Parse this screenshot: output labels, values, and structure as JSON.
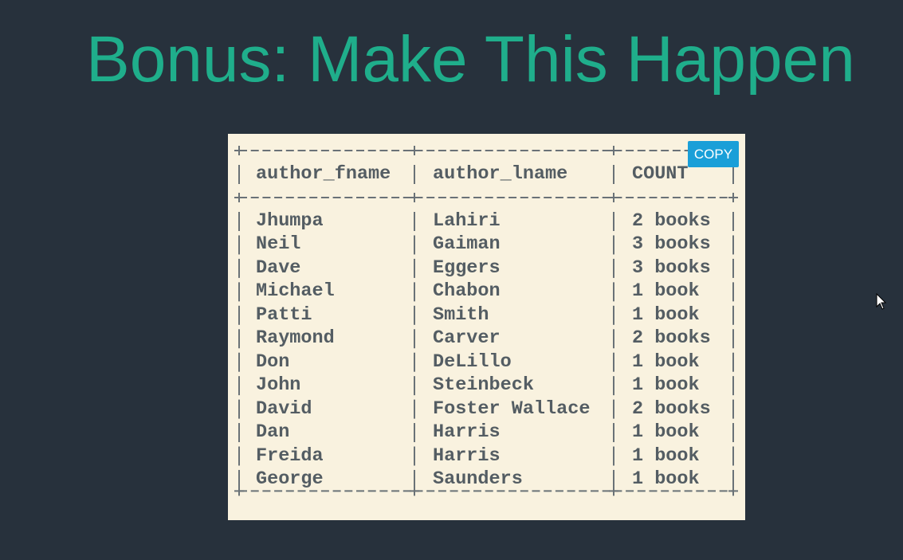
{
  "title": "Bonus: Make This Happen",
  "copy_button": "COPY",
  "table": {
    "headers": [
      "author_fname",
      "author_lname",
      "COUNT"
    ],
    "rows": [
      [
        "Jhumpa",
        "Lahiri",
        "2 books"
      ],
      [
        "Neil",
        "Gaiman",
        "3 books"
      ],
      [
        "Dave",
        "Eggers",
        "3 books"
      ],
      [
        "Michael",
        "Chabon",
        "1 book"
      ],
      [
        "Patti",
        "Smith",
        "1 book"
      ],
      [
        "Raymond",
        "Carver",
        "2 books"
      ],
      [
        "Don",
        "DeLillo",
        "1 book"
      ],
      [
        "John",
        "Steinbeck",
        "1 book"
      ],
      [
        "David",
        "Foster Wallace",
        "2 books"
      ],
      [
        "Dan",
        "Harris",
        "1 book"
      ],
      [
        "Freida",
        "Harris",
        "1 book"
      ],
      [
        "George",
        "Saunders",
        "1 book"
      ]
    ]
  }
}
